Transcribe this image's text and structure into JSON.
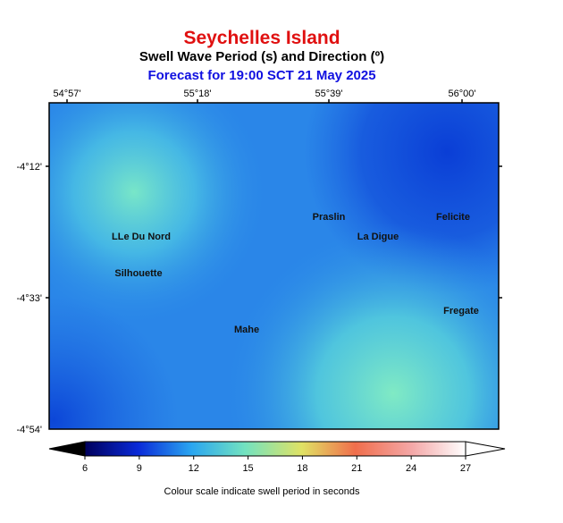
{
  "header": {
    "title": "Seychelles Island",
    "subtitle": "Swell Wave Period (s) and Direction (º)",
    "forecast": "Forecast for  19:00 SCT 21 May 2025"
  },
  "map": {
    "lon_labels": [
      "54°57'",
      "55°18'",
      "55°39'",
      "56°00'"
    ],
    "lat_labels": [
      "-4°12'",
      "-4°33'",
      "-4°54'"
    ],
    "places": [
      "Praslin",
      "Felicite",
      "LLe Du Nord",
      "La Digue",
      "Silhouette",
      "Fregate",
      "Mahe"
    ]
  },
  "colorbar": {
    "ticks": [
      6,
      9,
      12,
      15,
      18,
      21,
      24,
      27
    ],
    "caption": "Colour scale indicate swell period in seconds"
  }
}
